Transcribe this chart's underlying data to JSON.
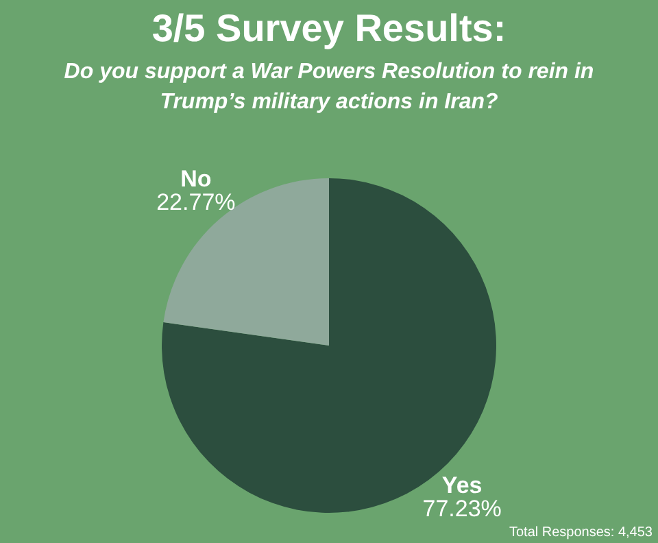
{
  "chart_data": {
    "type": "pie",
    "title": "3/5 Survey Results:",
    "subtitle": "Do you support a War Powers Resolution to rein in Trump’s military actions in Iran?",
    "categories": [
      "Yes",
      "No"
    ],
    "values": [
      77.23,
      22.77
    ],
    "colors": [
      "#2c4e3e",
      "#8fa99b"
    ],
    "value_labels": [
      "77.23%",
      "22.77%"
    ],
    "legend": false,
    "annotations": [
      "Total Responses: 4,453"
    ]
  }
}
